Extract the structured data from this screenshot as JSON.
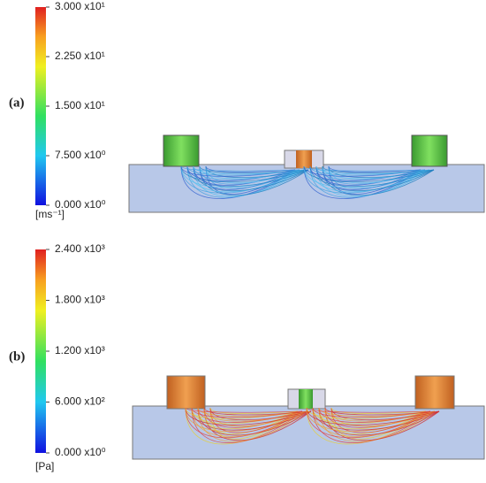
{
  "panels": [
    {
      "label": "(a)",
      "colorbar": {
        "ticks": [
          {
            "value": 30,
            "label": "3.000 x10¹"
          },
          {
            "value": 22.5,
            "label": "2.250 x10¹"
          },
          {
            "value": 15,
            "label": "1.500 x10¹"
          },
          {
            "value": 7.5,
            "label": "7.500 x10⁰"
          },
          {
            "value": 0,
            "label": "0.000 x10⁰"
          }
        ],
        "unit": "[ms⁻¹]"
      }
    },
    {
      "label": "(b)",
      "colorbar": {
        "ticks": [
          {
            "value": 2400,
            "label": "2.400 x10³"
          },
          {
            "value": 1800,
            "label": "1.800 x10³"
          },
          {
            "value": 1200,
            "label": "1.200 x10³"
          },
          {
            "value": 600,
            "label": "6.000 x10²"
          },
          {
            "value": 0,
            "label": "0.000 x10⁰"
          }
        ],
        "unit": "[Pa]"
      }
    }
  ]
}
